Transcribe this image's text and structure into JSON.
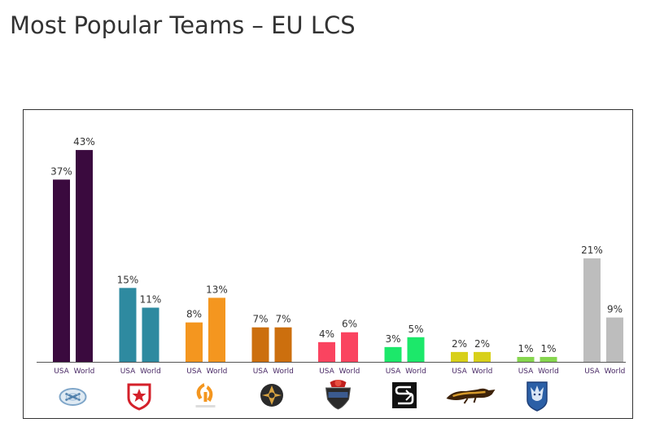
{
  "title": "Most Popular Teams – EU LCS",
  "chart_data": {
    "type": "bar",
    "categories": [
      "Elements",
      "Gambit Gaming",
      "Fnatic",
      "Ninjas in Pyjamas",
      "Alliance",
      "SK Gaming",
      "Copenhagen Wolves",
      "Millenium",
      ""
    ],
    "series": [
      {
        "values": [
          37,
          15,
          8,
          7,
          4,
          3,
          2,
          1,
          21
        ]
      },
      {
        "values": [
          43,
          11,
          13,
          7,
          6,
          5,
          2,
          1,
          9
        ]
      }
    ],
    "bar_labels": [
      "USA",
      "World"
    ],
    "value_suffix": "%",
    "colors": [
      "#3a0a3e",
      "#2e8aa0",
      "#f4961f",
      "#cc6f0e",
      "#fa4460",
      "#1ce86a",
      "#d8d01a",
      "#86d64e",
      "#bdbdbd"
    ],
    "logo_icons": [
      "elements-logo-icon",
      "gambit-logo-icon",
      "fnatic-logo-icon",
      "nip-logo-icon",
      "alliance-logo-icon",
      "sk-gaming-logo-icon",
      "copenhagen-wolves-logo-icon",
      "millenium-logo-icon",
      ""
    ],
    "ylim": [
      0,
      45
    ],
    "grid": false,
    "legend": "none",
    "xlabel": "",
    "ylabel": ""
  }
}
